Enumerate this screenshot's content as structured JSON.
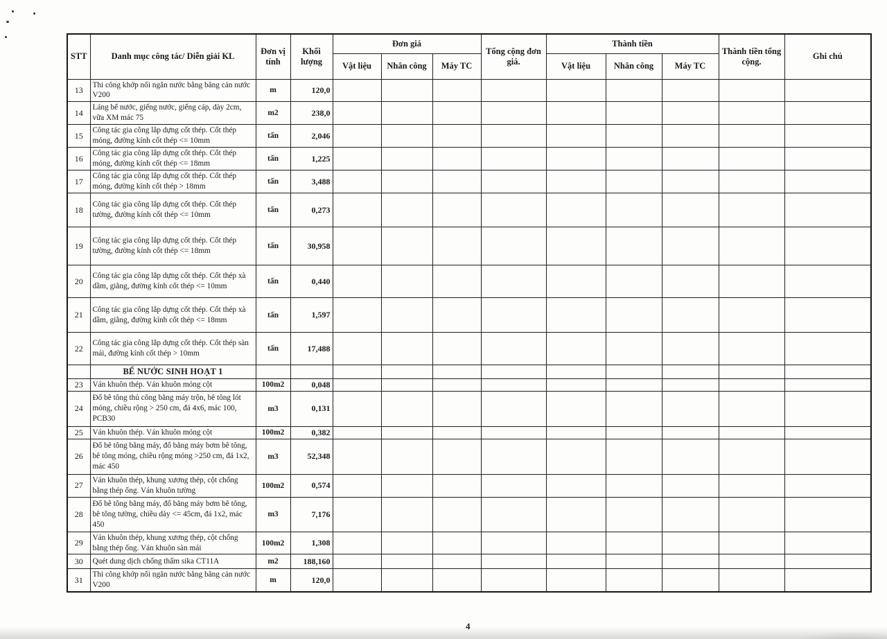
{
  "document": {
    "page_number": "4"
  },
  "table": {
    "header": {
      "stt": "STT",
      "category": "Danh mục công tác/ Diễn giải KL",
      "unit": "Đơn vị tính",
      "quantity": "Khối lượng",
      "unit_price_group": "Đơn giá",
      "unit_price_material": "Vật liệu",
      "unit_price_labor": "Nhân công",
      "unit_price_machine": "Máy TC",
      "unit_price_total": "Tổng cộng đơn giá.",
      "amount_group": "Thành tiền",
      "amount_material": "Vật liệu",
      "amount_labor": "Nhân công",
      "amount_machine": "Máy TC",
      "amount_total": "Thành tiền tổng cộng.",
      "notes": "Ghi chú"
    },
    "rows": [
      {
        "stt": "13",
        "desc": "Thi công khớp nối ngăn nước bằng băng cản nước V200",
        "unit": "m",
        "qty": "120,0"
      },
      {
        "stt": "14",
        "desc": "Láng bể nước, giếng nước, giếng cáp, dày 2cm, vữa XM mác 75",
        "unit": "m2",
        "qty": "238,0"
      },
      {
        "stt": "15",
        "desc": "Công tác gia công lắp dựng cốt thép. Cốt thép móng, đường kính cốt thép <= 10mm",
        "unit": "tấn",
        "qty": "2,046"
      },
      {
        "stt": "16",
        "desc": "Công tác gia công lắp dựng cốt thép. Cốt thép móng, đường kính cốt thép <= 18mm",
        "unit": "tấn",
        "qty": "1,225"
      },
      {
        "stt": "17",
        "desc": "Công tác gia công lắp dựng cốt thép. Cốt thép móng, đường kính cốt thép > 18mm",
        "unit": "tấn",
        "qty": "3,488"
      },
      {
        "stt": "18",
        "desc": "Công tác gia công lắp dựng cốt thép. Cốt thép tường, đường kính cốt thép <= 10mm",
        "unit": "tấn",
        "qty": "0,273"
      },
      {
        "stt": "19",
        "desc": "Công tác gia công lắp dựng cốt thép. Cốt thép tường, đường kính cốt thép <= 18mm",
        "unit": "tấn",
        "qty": "30,958"
      },
      {
        "stt": "20",
        "desc": "Công tác gia công lắp dựng cốt thép. Cốt thép xà dầm, giằng, đường kính cốt thép <= 10mm",
        "unit": "tấn",
        "qty": "0,440"
      },
      {
        "stt": "21",
        "desc": "Công tác gia công lắp dựng cốt thép. Cốt thép xà dầm, giằng, đường kính cốt thép <= 18mm",
        "unit": "tấn",
        "qty": "1,597"
      },
      {
        "stt": "22",
        "desc": "Công tác gia công lắp dựng cốt thép. Cốt thép sàn mái, đường kính cốt thép > 10mm",
        "unit": "tấn",
        "qty": "17,488"
      },
      {
        "type": "section",
        "stt": "",
        "desc": "BỂ NƯỚC SINH HOẠT 1",
        "unit": "",
        "qty": ""
      },
      {
        "stt": "23",
        "desc": "Ván khuôn thép. Ván khuôn móng cột",
        "unit": "100m2",
        "qty": "0,048"
      },
      {
        "stt": "24",
        "desc": "Đổ bê tông thủ công bằng máy trộn, bê tông lót móng, chiều rộng > 250 cm, đá 4x6, mác 100, PCB30",
        "unit": "m3",
        "qty": "0,131"
      },
      {
        "stt": "25",
        "desc": "Ván khuôn thép. Ván khuôn móng cột",
        "unit": "100m2",
        "qty": "0,382"
      },
      {
        "stt": "26",
        "desc": "Đổ bê tông bằng máy, đổ bằng máy bơm bê tông, bê tông móng, chiều rộng móng >250 cm, đá 1x2, mác 450",
        "unit": "m3",
        "qty": "52,348"
      },
      {
        "stt": "27",
        "desc": "Ván khuôn thép, khung xương thép, cột chống bằng thép ống. Ván khuôn tường",
        "unit": "100m2",
        "qty": "0,574"
      },
      {
        "stt": "28",
        "desc": "Đổ bê tông bằng máy, đổ bằng máy bơm bê tông, bê tông tường, chiều dày <= 45cm, đá 1x2, mác 450",
        "unit": "m3",
        "qty": "7,176"
      },
      {
        "stt": "29",
        "desc": "Ván khuôn thép, khung xương thép, cột chống bằng thép ống. Ván khuôn sàn mái",
        "unit": "100m2",
        "qty": "1,308"
      },
      {
        "stt": "30",
        "desc": "Quét dung dịch chống thấm sika CT11A",
        "unit": "m2",
        "qty": "188,160"
      },
      {
        "stt": "31",
        "desc": "Thi công khớp nối ngăn nước bằng băng cản nước V200",
        "unit": "m",
        "qty": "120,0"
      }
    ]
  }
}
